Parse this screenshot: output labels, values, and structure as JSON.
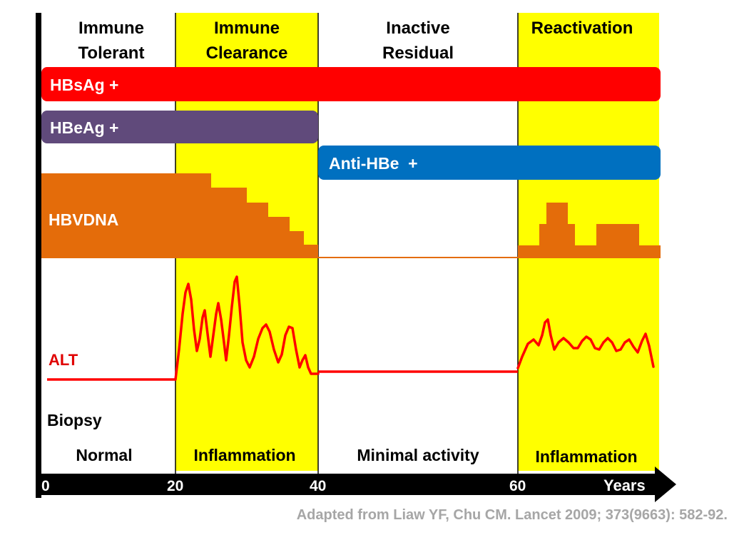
{
  "phases": [
    {
      "id": "immune-tolerant",
      "line1": "Immune",
      "line2": "Tolerant",
      "biopsy": "Normal",
      "highlight": false
    },
    {
      "id": "immune-clearance",
      "line1": "Immune",
      "line2": "Clearance",
      "biopsy": "Inflammation",
      "highlight": true
    },
    {
      "id": "inactive-residual",
      "line1": "Inactive",
      "line2": "Residual",
      "biopsy": "Minimal activity",
      "highlight": false
    },
    {
      "id": "reactivation",
      "line1": "Reactivation",
      "line2": "",
      "biopsy": "Inflammation",
      "highlight": true
    }
  ],
  "markers": {
    "hbsag": "HBsAg +",
    "hbeag": "HBeAg +",
    "anti_hbe": "Anti-HBe  +",
    "hbvdna": "HBVDNA",
    "alt": "ALT",
    "biopsy": "Biopsy"
  },
  "axis": {
    "ticks": [
      "0",
      "20",
      "40",
      "60"
    ],
    "unit": "Years"
  },
  "citation": "Adapted from Liaw YF, Chu CM. Lancet 2009; 373(9663): 582-92.",
  "colors": {
    "highlight": "#ffff00",
    "hbsag": "#ff0000",
    "hbeag": "#604a7b",
    "anti_hbe": "#0070c0",
    "hbvdna": "#e46c0a",
    "alt": "#ff0000",
    "alt_label": "#e00000",
    "axis": "#000000",
    "citation": "#a6a6a6"
  }
}
